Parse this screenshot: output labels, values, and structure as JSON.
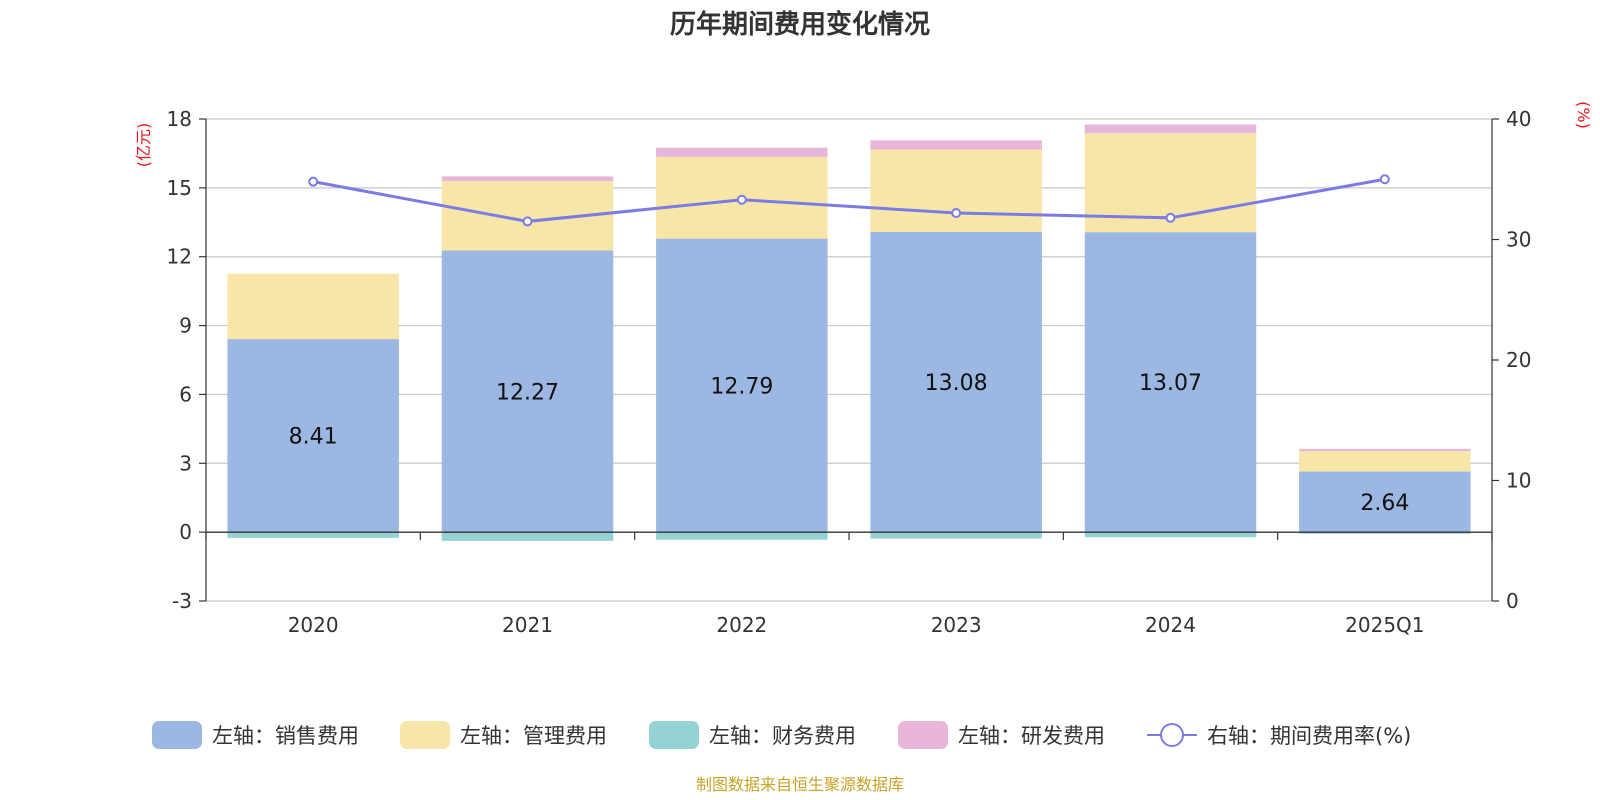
{
  "chart_data": {
    "type": "bar",
    "title": "历年期间费用变化情况",
    "categories": [
      "2020",
      "2021",
      "2022",
      "2023",
      "2024",
      "2025Q1"
    ],
    "y_left": {
      "unit": "(亿元)",
      "min": -3,
      "max": 18,
      "ticks": [
        -3,
        0,
        3,
        6,
        9,
        12,
        15,
        18
      ]
    },
    "y_right": {
      "unit": "(%)",
      "min": 0,
      "max": 40,
      "ticks": [
        0,
        10,
        20,
        30,
        40
      ]
    },
    "stacked_series": [
      {
        "name": "左轴：销售费用",
        "color": "#9bb7e2",
        "values": [
          8.41,
          12.27,
          12.79,
          13.08,
          13.07,
          2.64
        ],
        "show_labels": true
      },
      {
        "name": "左轴：管理费用",
        "color": "#f8e6a8",
        "values": [
          2.85,
          3.03,
          3.56,
          3.59,
          4.31,
          0.89
        ]
      },
      {
        "name": "左轴：财务费用",
        "color": "#95d2d4",
        "values": [
          -0.25,
          -0.38,
          -0.33,
          -0.28,
          -0.22,
          -0.07
        ]
      },
      {
        "name": "左轴：研发费用",
        "color": "#e8b6d8",
        "values": [
          0.0,
          0.2,
          0.4,
          0.4,
          0.38,
          0.1
        ]
      }
    ],
    "line_series": {
      "name": "右轴：期间费用率(%)",
      "color": "#7b7be6",
      "axis": "right",
      "values": [
        34.8,
        31.5,
        33.3,
        32.2,
        31.8,
        35.0
      ]
    },
    "legend_position": "bottom",
    "grid": true,
    "source": "制图数据来自恒生聚源数据库"
  }
}
